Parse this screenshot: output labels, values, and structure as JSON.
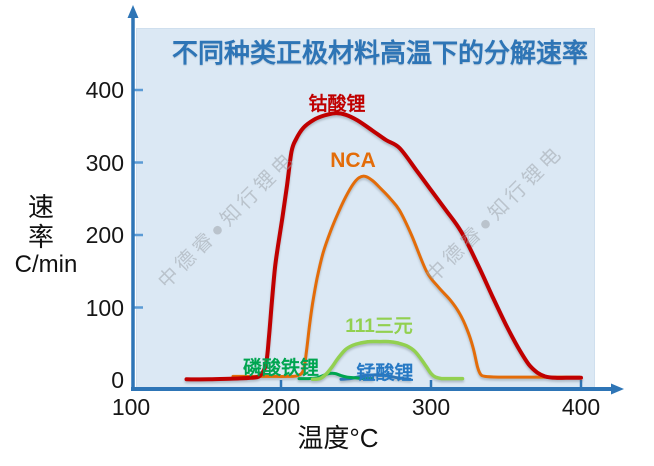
{
  "title": "不同种类正极材料高温下的分解速率",
  "watermark": "中德睿●知行锂电",
  "y_axis": {
    "label_line1": "速",
    "label_line2": "率",
    "unit": "C/min"
  },
  "x_axis": {
    "label": "温度°C"
  },
  "chart_data": {
    "type": "line",
    "title": "不同种类正极材料高温下的分解速率",
    "xlabel": "温度°C",
    "ylabel": "速率 C/min",
    "xlim": [
      100,
      430
    ],
    "ylim": [
      0,
      460
    ],
    "x_ticks": [
      100,
      200,
      300,
      400
    ],
    "y_ticks": [
      0,
      100,
      200,
      300,
      400
    ],
    "grid": false,
    "legend_position": "labels-on-curves",
    "axis_color": "#2e75b6",
    "plot_bg_color": "#dbe8f4",
    "title_color": "#2e75b6",
    "series": [
      {
        "name": "钴酸锂",
        "color": "#c00000",
        "width": 4,
        "points": [
          [
            137,
            1
          ],
          [
            152,
            1
          ],
          [
            168,
            2
          ],
          [
            180,
            3
          ],
          [
            186,
            6
          ],
          [
            190,
            22
          ],
          [
            192,
            60
          ],
          [
            194,
            110
          ],
          [
            196,
            155
          ],
          [
            198,
            185
          ],
          [
            201,
            225
          ],
          [
            204,
            268
          ],
          [
            207,
            315
          ],
          [
            210,
            332
          ],
          [
            215,
            348
          ],
          [
            222,
            359
          ],
          [
            229,
            365
          ],
          [
            236,
            368
          ],
          [
            243,
            366
          ],
          [
            251,
            358
          ],
          [
            261,
            344
          ],
          [
            270,
            331
          ],
          [
            279,
            320
          ],
          [
            290,
            290
          ],
          [
            300,
            262
          ],
          [
            310,
            234
          ],
          [
            320,
            205
          ],
          [
            331,
            160
          ],
          [
            341,
            115
          ],
          [
            350,
            76
          ],
          [
            358,
            45
          ],
          [
            365,
            22
          ],
          [
            371,
            10
          ],
          [
            376,
            5
          ],
          [
            383,
            3
          ],
          [
            390,
            3
          ],
          [
            400,
            3
          ]
        ]
      },
      {
        "name": "NCA",
        "color": "#e36c09",
        "width": 3,
        "points": [
          [
            168,
            5
          ],
          [
            180,
            5
          ],
          [
            193,
            5
          ],
          [
            204,
            5
          ],
          [
            211,
            6
          ],
          [
            215,
            14
          ],
          [
            217,
            40
          ],
          [
            219,
            75
          ],
          [
            221,
            105
          ],
          [
            224,
            140
          ],
          [
            228,
            175
          ],
          [
            233,
            205
          ],
          [
            238,
            230
          ],
          [
            243,
            252
          ],
          [
            248,
            270
          ],
          [
            252,
            279
          ],
          [
            256,
            281
          ],
          [
            261,
            275
          ],
          [
            267,
            263
          ],
          [
            273,
            250
          ],
          [
            279,
            234
          ],
          [
            287,
            200
          ],
          [
            297,
            150
          ],
          [
            305,
            128
          ],
          [
            313,
            110
          ],
          [
            319,
            92
          ],
          [
            324,
            70
          ],
          [
            328,
            45
          ],
          [
            331,
            18
          ],
          [
            333,
            8
          ],
          [
            336,
            5
          ],
          [
            345,
            4
          ],
          [
            360,
            4
          ],
          [
            375,
            4
          ],
          [
            390,
            4
          ],
          [
            399,
            4
          ]
        ]
      },
      {
        "name": "111三元",
        "color": "#92d050",
        "width": 3.5,
        "points": [
          [
            221,
            1
          ],
          [
            226,
            2
          ],
          [
            230,
            8
          ],
          [
            234,
            18
          ],
          [
            238,
            30
          ],
          [
            243,
            42
          ],
          [
            248,
            48
          ],
          [
            253,
            51
          ],
          [
            259,
            53
          ],
          [
            266,
            53
          ],
          [
            272,
            53
          ],
          [
            278,
            51
          ],
          [
            284,
            47
          ],
          [
            289,
            40
          ],
          [
            293,
            30
          ],
          [
            297,
            18
          ],
          [
            300,
            9
          ],
          [
            303,
            4
          ],
          [
            307,
            2
          ],
          [
            313,
            2
          ],
          [
            321,
            2
          ]
        ]
      },
      {
        "name": "磷酸铁锂",
        "color": "#00a550",
        "width": 3,
        "points": [
          [
            212,
            2
          ],
          [
            218,
            2
          ],
          [
            224,
            3
          ],
          [
            228,
            6
          ],
          [
            232,
            9
          ],
          [
            236,
            9
          ],
          [
            240,
            6
          ],
          [
            244,
            4
          ],
          [
            249,
            3
          ],
          [
            255,
            2
          ],
          [
            261,
            2
          ]
        ]
      },
      {
        "name": "锰酸锂",
        "color": "#2e75b6",
        "width": 3,
        "points": [
          [
            240,
            1
          ],
          [
            246,
            2
          ],
          [
            251,
            4
          ],
          [
            256,
            6
          ],
          [
            262,
            7
          ],
          [
            268,
            7
          ],
          [
            273,
            5
          ],
          [
            278,
            3
          ],
          [
            282,
            2
          ],
          [
            286,
            1
          ]
        ]
      }
    ]
  }
}
